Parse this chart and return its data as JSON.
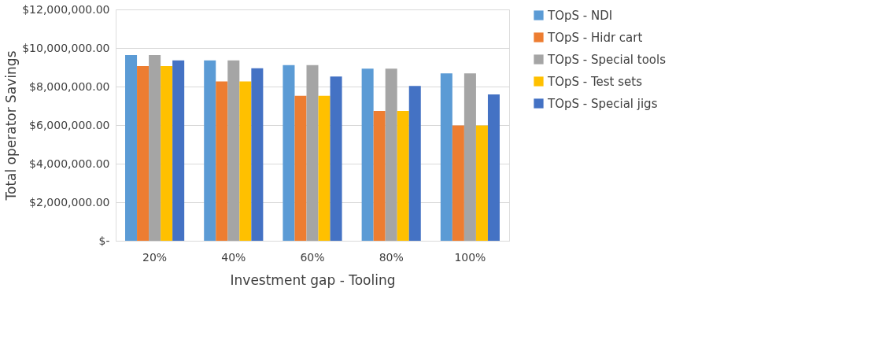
{
  "chart_data": {
    "type": "bar",
    "xlabel": "Investment gap - Tooling",
    "ylabel": "Total operator Savings",
    "categories": [
      "20%",
      "40%",
      "60%",
      "80%",
      "100%"
    ],
    "series": [
      {
        "name": "TOpS - NDI",
        "color": "#5b9bd5",
        "values": [
          9630000,
          9360000,
          9110000,
          8930000,
          8680000
        ]
      },
      {
        "name": "TOpS - Hidr cart",
        "color": "#ed7d31",
        "values": [
          9060000,
          8270000,
          7520000,
          6730000,
          5980000
        ]
      },
      {
        "name": "TOpS - Special tools",
        "color": "#a5a5a5",
        "values": [
          9630000,
          9360000,
          9110000,
          8930000,
          8680000
        ]
      },
      {
        "name": "TOpS - Test sets",
        "color": "#ffc000",
        "values": [
          9060000,
          8270000,
          7520000,
          6730000,
          5980000
        ]
      },
      {
        "name": "TOpS - Special jigs",
        "color": "#4472c4",
        "values": [
          9360000,
          8950000,
          8520000,
          8030000,
          7590000
        ]
      }
    ],
    "ylim": [
      0,
      12000000
    ],
    "yticks": [
      {
        "value": 0,
        "label": "$-"
      },
      {
        "value": 2000000,
        "label": "$2,000,000.00"
      },
      {
        "value": 4000000,
        "label": "$4,000,000.00"
      },
      {
        "value": 6000000,
        "label": "$6,000,000.00"
      },
      {
        "value": 8000000,
        "label": "$8,000,000.00"
      },
      {
        "value": 10000000,
        "label": "$10,000,000.00"
      },
      {
        "value": 12000000,
        "label": "$12,000,000.00"
      }
    ],
    "grid": "y",
    "legend": "right"
  }
}
